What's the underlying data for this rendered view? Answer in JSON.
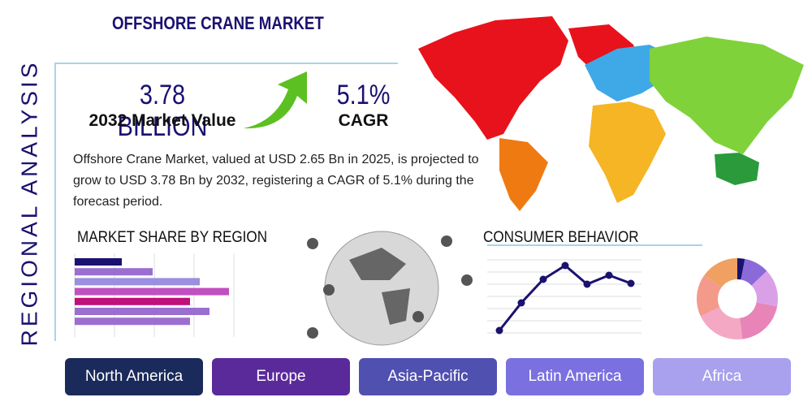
{
  "title": "OFFSHORE CRANE MARKET",
  "side_label": "REGIONAL ANALYSIS",
  "stats": [
    {
      "value": "3.78 BILLION",
      "label": "2032 Market Value"
    },
    {
      "value": "5.1%",
      "label": "CAGR"
    }
  ],
  "description": "Offshore Crane Market, valued at USD 2.65 Bn in 2025, is projected to grow to USD 3.78 Bn by 2032, registering a CAGR of 5.1% during the forecast period.",
  "regions": [
    "North America",
    "Europe",
    "Asia-Pacific",
    "Latin America",
    "Africa"
  ],
  "chart_data": [
    {
      "type": "hbar",
      "title": "MARKET SHARE BY REGION",
      "categories": [
        null,
        null,
        null,
        null,
        null,
        null,
        null
      ],
      "values": [
        29,
        48,
        77,
        95,
        71,
        83,
        71
      ],
      "colors": [
        "#1a1170",
        "#9b6fd0",
        "#9b8fe0",
        "#c050c0",
        "#c0107a",
        "#9b6fd0",
        "#9b6fd0"
      ],
      "xlim": [
        0,
        100
      ]
    },
    {
      "type": "line",
      "title": "CONSUMER BEHAVIOR",
      "categories": [
        null,
        null,
        null,
        null,
        null,
        null,
        null
      ],
      "values": [
        8,
        42,
        71,
        88,
        65,
        76,
        66
      ],
      "color": "#1a1170",
      "ylim": [
        0,
        100
      ]
    },
    {
      "type": "donut",
      "values": [
        3,
        10,
        15,
        20,
        20,
        17,
        15
      ],
      "colors": [
        "#1a1170",
        "#8a6ad8",
        "#d9a0e8",
        "#e884b8",
        "#f4a8c4",
        "#f39a8a",
        "#f0a060"
      ]
    }
  ]
}
